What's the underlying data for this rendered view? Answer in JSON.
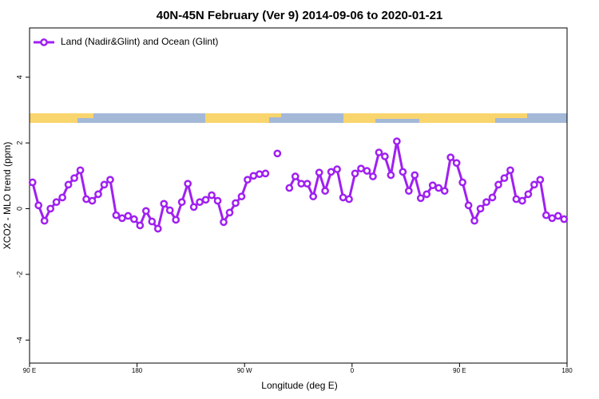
{
  "chart_data": {
    "type": "line",
    "title": "40N-45N February (Ver 9)   2014-09-06 to 2020-01-21",
    "x_label": "Longitude (deg E)",
    "y_label": "XCO2 - MLO trend (ppm)",
    "x": [
      92.5,
      97.5,
      102.5,
      107.5,
      112.5,
      117.5,
      122.5,
      127.5,
      132.5,
      137.5,
      142.5,
      147.5,
      152.5,
      157.5,
      162.5,
      167.5,
      172.5,
      177.5,
      182.5,
      187.5,
      192.5,
      197.5,
      202.5,
      207.5,
      212.5,
      217.5,
      222.5,
      227.5,
      232.5,
      237.5,
      242.5,
      247.5,
      252.5,
      257.5,
      262.5,
      267.5,
      272.5,
      277.5,
      282.5,
      287.5,
      292.5,
      297.5,
      302.5,
      307.5,
      312.5,
      317.5,
      322.5,
      327.5,
      332.5,
      337.5,
      342.5,
      347.5,
      352.5,
      357.5,
      362.5,
      367.5,
      372.5,
      377.5,
      382.5,
      387.5,
      392.5,
      397.5,
      402.5,
      407.5,
      412.5,
      417.5,
      422.5,
      427.5,
      432.5,
      437.5,
      442.5,
      447.5,
      452.5,
      457.5,
      462.5,
      467.5,
      472.5,
      477.5,
      482.5,
      487.5,
      492.5,
      497.5,
      502.5,
      507.5,
      512.5,
      517.5,
      522.5,
      527.5,
      532.5,
      537.5
    ],
    "series": [
      {
        "name": "Land (Nadir&Glint) and Ocean (Glint)",
        "color": "#a020f0",
        "values": [
          0.8,
          0.1,
          -0.37,
          0.0,
          0.2,
          0.34,
          0.73,
          0.93,
          1.17,
          0.29,
          0.24,
          0.44,
          0.73,
          0.88,
          -0.2,
          -0.29,
          -0.22,
          -0.32,
          -0.51,
          -0.07,
          -0.39,
          -0.61,
          0.15,
          -0.05,
          -0.34,
          0.2,
          0.76,
          0.05,
          0.2,
          0.27,
          0.41,
          0.24,
          -0.41,
          -0.12,
          0.17,
          0.37,
          0.88,
          1.0,
          1.05,
          1.07,
          null,
          1.68,
          null,
          0.63,
          0.98,
          0.76,
          0.76,
          0.37,
          1.1,
          0.54,
          1.12,
          1.2,
          0.34,
          0.29,
          1.07,
          1.22,
          1.15,
          0.98,
          1.71,
          1.59,
          1.02,
          2.05,
          1.12,
          0.54,
          1.02,
          0.32,
          0.44,
          0.71,
          0.63,
          0.54,
          1.56,
          1.39,
          0.8,
          0.1,
          -0.37,
          0.0,
          0.2,
          0.34,
          0.73,
          0.93,
          1.17,
          0.29,
          0.24,
          0.44,
          0.73,
          0.88,
          -0.2,
          -0.29,
          -0.22,
          -0.32
        ]
      }
    ],
    "xlim": [
      90,
      540
    ],
    "xticks": [
      {
        "value": 90,
        "label": "90 E"
      },
      180,
      {
        "value": 270,
        "label": "90 W"
      },
      {
        "value": 360,
        "label": "0"
      },
      {
        "value": 450,
        "label": "90 E"
      },
      {
        "value": 540,
        "label": "180"
      }
    ],
    "ylim": [
      -4.7,
      5.5
    ],
    "yticks": [
      -4,
      -2,
      0,
      2,
      4
    ],
    "legend": "top-left"
  }
}
